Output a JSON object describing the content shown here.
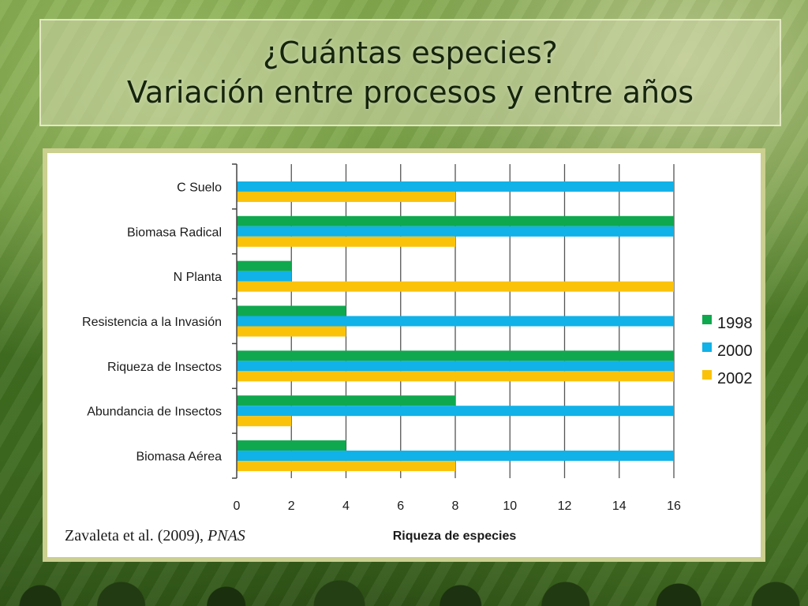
{
  "slide": {
    "title_line1": "¿Cuántas especies?",
    "title_line2": "Variación entre procesos y entre años",
    "citation_text": "Zavaleta et al. (2009), ",
    "citation_journal": "PNAS"
  },
  "colors": {
    "series_1998": "#10a84e",
    "series_2000": "#10b2e8",
    "series_2002": "#fbc20a",
    "gridline": "#555555",
    "panel_border": "#cbcf8f"
  },
  "chart_data": {
    "type": "bar",
    "orientation": "horizontal",
    "categories": [
      "C Suelo",
      "Biomasa Radical",
      "N Planta",
      "Resistencia a la Invasión",
      "Riqueza de Insectos",
      "Abundancia de Insectos",
      "Biomasa Aérea"
    ],
    "series": [
      {
        "name": "1998",
        "values": [
          null,
          16,
          2,
          4,
          16,
          8,
          4
        ]
      },
      {
        "name": "2000",
        "values": [
          16,
          16,
          2,
          16,
          16,
          16,
          16
        ]
      },
      {
        "name": "2002",
        "values": [
          8,
          8,
          16,
          4,
          16,
          2,
          8
        ]
      }
    ],
    "xlabel": "Riqueza de especies",
    "ylabel": "",
    "xlim": [
      0,
      16
    ],
    "xticks": [
      0,
      2,
      4,
      6,
      8,
      10,
      12,
      14,
      16
    ],
    "grid": "vertical",
    "legend_position": "right"
  }
}
